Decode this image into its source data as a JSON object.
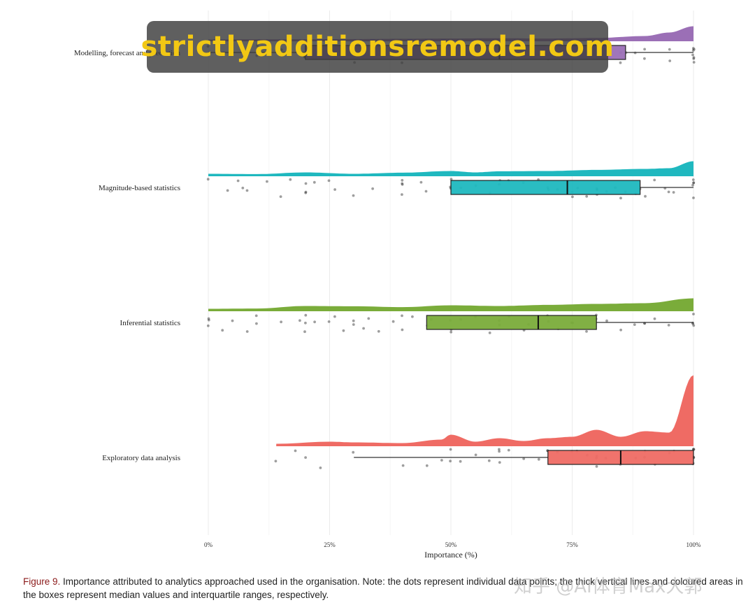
{
  "chart_data": {
    "type": "raincloud",
    "xlabel": "Importance (%)",
    "xticks": [
      "0%",
      "25%",
      "50%",
      "75%",
      "100%"
    ],
    "xlim": [
      0,
      100
    ],
    "grid": true,
    "categories": [
      "Modelling, forecast and prediction",
      "Magnitude-based statistics",
      "Inferential statistics",
      "Exploratory data analysis"
    ],
    "series": [
      {
        "category": "Modelling, forecast and prediction",
        "color": "#9b6fb6",
        "box": {
          "q1": 20,
          "median": 60,
          "q3": 86,
          "whisker_low": 0,
          "whisker_high": 100
        },
        "density": [
          [
            0,
            0.05
          ],
          [
            10,
            0.06
          ],
          [
            20,
            0.07
          ],
          [
            30,
            0.08
          ],
          [
            40,
            0.1
          ],
          [
            50,
            0.12
          ],
          [
            60,
            0.14
          ],
          [
            70,
            0.12
          ],
          [
            80,
            0.16
          ],
          [
            90,
            0.3
          ],
          [
            95,
            0.55
          ],
          [
            100,
            1.0
          ]
        ],
        "points": [
          0,
          0,
          5,
          10,
          10,
          15,
          20,
          20,
          20,
          25,
          30,
          30,
          35,
          40,
          40,
          45,
          50,
          50,
          50,
          55,
          60,
          60,
          60,
          65,
          70,
          70,
          75,
          75,
          80,
          80,
          85,
          85,
          86,
          88,
          90,
          90,
          95,
          95,
          100,
          100,
          100,
          100,
          100,
          100,
          100
        ]
      },
      {
        "category": "Magnitude-based statistics",
        "color": "#1fb8bf",
        "box": {
          "q1": 50,
          "median": 74,
          "q3": 89,
          "whisker_low": 50,
          "whisker_high": 100
        },
        "density": [
          [
            0,
            0.1
          ],
          [
            10,
            0.08
          ],
          [
            20,
            0.2
          ],
          [
            30,
            0.1
          ],
          [
            40,
            0.18
          ],
          [
            50,
            0.3
          ],
          [
            55,
            0.2
          ],
          [
            60,
            0.28
          ],
          [
            70,
            0.3
          ],
          [
            80,
            0.38
          ],
          [
            90,
            0.45
          ],
          [
            95,
            0.5
          ],
          [
            100,
            1.0
          ]
        ],
        "points": [
          0,
          4,
          6,
          7,
          8,
          12,
          15,
          17,
          20,
          20,
          20,
          22,
          25,
          26,
          30,
          34,
          40,
          40,
          40,
          40,
          44,
          45,
          50,
          50,
          50,
          52,
          55,
          58,
          60,
          60,
          62,
          65,
          68,
          70,
          70,
          72,
          74,
          75,
          75,
          76,
          78,
          80,
          80,
          80,
          82,
          84,
          85,
          86,
          88,
          89,
          90,
          92,
          94,
          95,
          96,
          100,
          100,
          100,
          100,
          100
        ]
      },
      {
        "category": "Inferential statistics",
        "color": "#7aac3a",
        "box": {
          "q1": 45,
          "median": 68,
          "q3": 80,
          "whisker_low": 45,
          "whisker_high": 100
        },
        "density": [
          [
            0,
            0.1
          ],
          [
            10,
            0.12
          ],
          [
            20,
            0.3
          ],
          [
            30,
            0.28
          ],
          [
            40,
            0.22
          ],
          [
            50,
            0.35
          ],
          [
            60,
            0.3
          ],
          [
            70,
            0.38
          ],
          [
            80,
            0.45
          ],
          [
            90,
            0.5
          ],
          [
            100,
            0.85
          ]
        ],
        "points": [
          0,
          0,
          0,
          3,
          5,
          8,
          10,
          10,
          15,
          19,
          20,
          20,
          20,
          22,
          25,
          26,
          28,
          30,
          30,
          32,
          33,
          35,
          38,
          40,
          40,
          42,
          45,
          46,
          50,
          50,
          50,
          52,
          55,
          58,
          60,
          60,
          62,
          65,
          66,
          68,
          70,
          70,
          72,
          75,
          75,
          78,
          80,
          80,
          82,
          85,
          88,
          90,
          90,
          92,
          95,
          100,
          100,
          100,
          100
        ]
      },
      {
        "category": "Exploratory data analysis",
        "color": "#ef6b64",
        "box": {
          "q1": 70,
          "median": 85,
          "q3": 100,
          "whisker_low": 30,
          "whisker_high": 100
        },
        "density": [
          [
            14,
            0.02
          ],
          [
            25,
            0.05
          ],
          [
            30,
            0.04
          ],
          [
            40,
            0.03
          ],
          [
            48,
            0.08
          ],
          [
            50,
            0.15
          ],
          [
            55,
            0.05
          ],
          [
            60,
            0.1
          ],
          [
            65,
            0.06
          ],
          [
            70,
            0.1
          ],
          [
            75,
            0.12
          ],
          [
            80,
            0.22
          ],
          [
            85,
            0.12
          ],
          [
            90,
            0.2
          ],
          [
            95,
            0.18
          ],
          [
            100,
            1.0
          ]
        ],
        "points": [
          14,
          18,
          20,
          23,
          30,
          40,
          45,
          48,
          50,
          50,
          52,
          55,
          58,
          60,
          60,
          60,
          62,
          65,
          68,
          70,
          70,
          72,
          75,
          76,
          78,
          80,
          80,
          80,
          82,
          85,
          85,
          88,
          90,
          90,
          92,
          95,
          96,
          100,
          100,
          100,
          100,
          100,
          100,
          100,
          100
        ]
      }
    ]
  },
  "caption": {
    "figure_label": "Figure 9.",
    "text": " Importance attributed to analytics approached used in the organisation. Note: the dots represent individual data points; the thick vertical lines and coloured areas in the boxes represent median values and interquartile ranges, respectively."
  },
  "watermark": {
    "text": "strictlyadditionsremodel.com"
  },
  "corner_watermark": {
    "text": "知乎 @AI体育Max大郭"
  }
}
